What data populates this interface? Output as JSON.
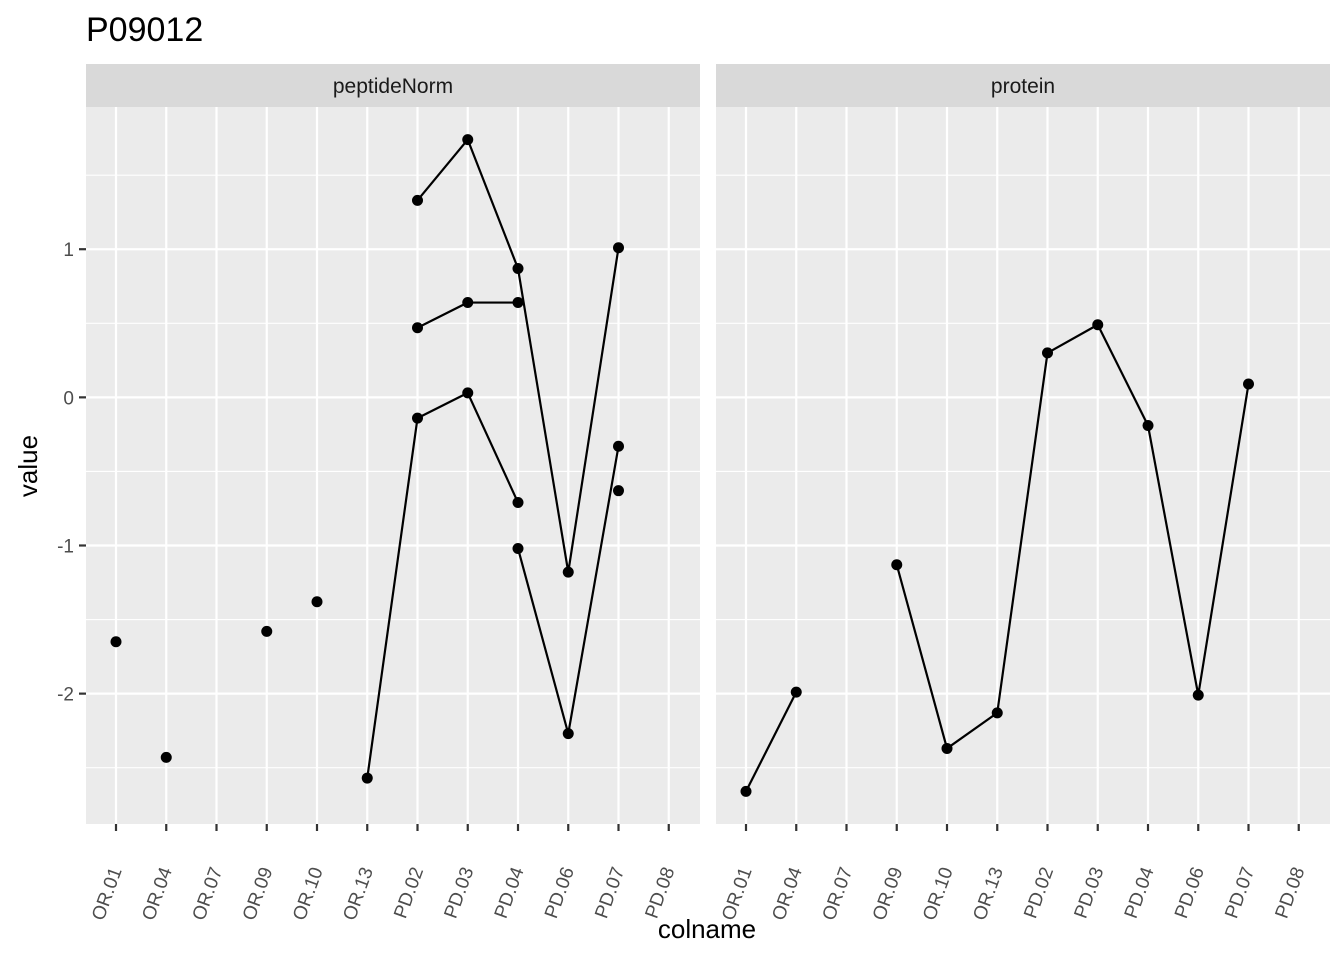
{
  "chart_data": {
    "type": "line",
    "title": "P09012",
    "xlabel": "colname",
    "ylabel": "value",
    "ylim": [
      -2.88,
      1.96
    ],
    "grid": true,
    "y_ticks": [
      -2,
      -1,
      0,
      1
    ],
    "y_tick_labels": [
      "-2",
      "-1",
      "0",
      "1"
    ],
    "categories": [
      "OR.01",
      "OR.04",
      "OR.07",
      "OR.09",
      "OR.10",
      "OR.13",
      "PD.02",
      "PD.03",
      "PD.04",
      "PD.06",
      "PD.07",
      "PD.08"
    ],
    "panels": [
      {
        "label": "peptideNorm",
        "series": [
          {
            "values": [
              -1.65,
              null,
              null,
              -1.58,
              null,
              null,
              null,
              null,
              null,
              null,
              null,
              null
            ]
          },
          {
            "values": [
              null,
              -2.43,
              null,
              null,
              -1.38,
              null,
              null,
              null,
              null,
              null,
              null,
              null
            ]
          },
          {
            "values": [
              null,
              null,
              null,
              null,
              null,
              null,
              1.33,
              1.74,
              0.87,
              -1.18,
              1.01,
              null
            ]
          },
          {
            "values": [
              null,
              null,
              null,
              null,
              null,
              null,
              0.47,
              0.64,
              0.64,
              null,
              null,
              null
            ]
          },
          {
            "values": [
              null,
              null,
              null,
              null,
              null,
              -2.57,
              -0.14,
              0.03,
              -0.71,
              null,
              null,
              null
            ]
          },
          {
            "values": [
              null,
              null,
              null,
              null,
              null,
              null,
              null,
              null,
              -1.02,
              -2.27,
              -0.33,
              null
            ]
          },
          {
            "values": [
              null,
              null,
              null,
              null,
              null,
              null,
              null,
              null,
              null,
              null,
              -0.63,
              null
            ]
          }
        ]
      },
      {
        "label": "protein",
        "series": [
          {
            "values": [
              -2.66,
              -1.99,
              null,
              -1.13,
              -2.37,
              -2.13,
              0.3,
              0.49,
              -0.19,
              -2.01,
              0.09,
              null
            ]
          }
        ]
      }
    ]
  }
}
